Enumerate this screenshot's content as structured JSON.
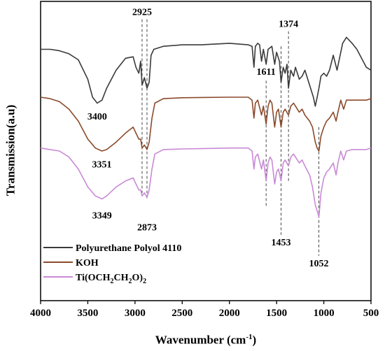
{
  "chart_data": {
    "type": "line",
    "title": "",
    "xlabel": "Wavenumber (cm",
    "xlabel_sup": "-1",
    "xlabel_end": ")",
    "ylabel": "Transmission(a.u)",
    "xlim": [
      4000,
      500
    ],
    "x_ticks": [
      4000,
      3500,
      3000,
      2500,
      2000,
      1500,
      1000,
      500
    ],
    "x_tick_labels": [
      "4000",
      "3500",
      "3000",
      "2500",
      "2000",
      "1500",
      "1000",
      "500"
    ],
    "x_reversed": true,
    "grid": false,
    "legend_position": "bottom-left",
    "series": [
      {
        "name": "Polyurethane Polyol 4110",
        "color": "#3a3a3a",
        "baseline": 0.16,
        "points": [
          [
            4000,
            0.16
          ],
          [
            3900,
            0.16
          ],
          [
            3800,
            0.165
          ],
          [
            3700,
            0.175
          ],
          [
            3600,
            0.195
          ],
          [
            3500,
            0.26
          ],
          [
            3450,
            0.32
          ],
          [
            3400,
            0.34
          ],
          [
            3350,
            0.33
          ],
          [
            3300,
            0.29
          ],
          [
            3200,
            0.23
          ],
          [
            3100,
            0.19
          ],
          [
            3020,
            0.185
          ],
          [
            2990,
            0.22
          ],
          [
            2960,
            0.24
          ],
          [
            2940,
            0.2
          ],
          [
            2925,
            0.28
          ],
          [
            2900,
            0.255
          ],
          [
            2873,
            0.29
          ],
          [
            2850,
            0.27
          ],
          [
            2830,
            0.18
          ],
          [
            2800,
            0.16
          ],
          [
            2700,
            0.15
          ],
          [
            2500,
            0.145
          ],
          [
            2300,
            0.145
          ],
          [
            2000,
            0.14
          ],
          [
            1800,
            0.145
          ],
          [
            1760,
            0.15
          ],
          [
            1740,
            0.22
          ],
          [
            1725,
            0.15
          ],
          [
            1700,
            0.14
          ],
          [
            1680,
            0.145
          ],
          [
            1660,
            0.2
          ],
          [
            1640,
            0.16
          ],
          [
            1611,
            0.21
          ],
          [
            1590,
            0.16
          ],
          [
            1550,
            0.15
          ],
          [
            1520,
            0.21
          ],
          [
            1500,
            0.17
          ],
          [
            1470,
            0.2
          ],
          [
            1453,
            0.27
          ],
          [
            1430,
            0.22
          ],
          [
            1410,
            0.24
          ],
          [
            1390,
            0.21
          ],
          [
            1374,
            0.29
          ],
          [
            1350,
            0.23
          ],
          [
            1320,
            0.25
          ],
          [
            1300,
            0.22
          ],
          [
            1260,
            0.26
          ],
          [
            1230,
            0.25
          ],
          [
            1200,
            0.23
          ],
          [
            1150,
            0.28
          ],
          [
            1110,
            0.32
          ],
          [
            1090,
            0.35
          ],
          [
            1070,
            0.32
          ],
          [
            1052,
            0.29
          ],
          [
            1030,
            0.25
          ],
          [
            1000,
            0.24
          ],
          [
            970,
            0.25
          ],
          [
            940,
            0.23
          ],
          [
            900,
            0.18
          ],
          [
            860,
            0.23
          ],
          [
            840,
            0.2
          ],
          [
            800,
            0.14
          ],
          [
            760,
            0.12
          ],
          [
            700,
            0.14
          ],
          [
            650,
            0.16
          ],
          [
            600,
            0.19
          ],
          [
            550,
            0.22
          ],
          [
            500,
            0.23
          ]
        ]
      },
      {
        "name": "KOH",
        "color": "#8b4a2b",
        "baseline": 0.32,
        "points": [
          [
            4000,
            0.32
          ],
          [
            3900,
            0.325
          ],
          [
            3800,
            0.335
          ],
          [
            3700,
            0.36
          ],
          [
            3600,
            0.4
          ],
          [
            3500,
            0.46
          ],
          [
            3420,
            0.49
          ],
          [
            3351,
            0.5
          ],
          [
            3300,
            0.495
          ],
          [
            3200,
            0.47
          ],
          [
            3100,
            0.44
          ],
          [
            3020,
            0.42
          ],
          [
            2990,
            0.44
          ],
          [
            2960,
            0.46
          ],
          [
            2940,
            0.46
          ],
          [
            2925,
            0.49
          ],
          [
            2900,
            0.48
          ],
          [
            2873,
            0.495
          ],
          [
            2850,
            0.47
          ],
          [
            2820,
            0.39
          ],
          [
            2790,
            0.34
          ],
          [
            2700,
            0.325
          ],
          [
            2500,
            0.322
          ],
          [
            2300,
            0.321
          ],
          [
            2000,
            0.32
          ],
          [
            1800,
            0.32
          ],
          [
            1760,
            0.33
          ],
          [
            1740,
            0.39
          ],
          [
            1725,
            0.34
          ],
          [
            1700,
            0.33
          ],
          [
            1660,
            0.38
          ],
          [
            1640,
            0.35
          ],
          [
            1611,
            0.41
          ],
          [
            1590,
            0.35
          ],
          [
            1570,
            0.33
          ],
          [
            1550,
            0.34
          ],
          [
            1520,
            0.42
          ],
          [
            1500,
            0.37
          ],
          [
            1480,
            0.36
          ],
          [
            1453,
            0.42
          ],
          [
            1430,
            0.37
          ],
          [
            1410,
            0.36
          ],
          [
            1374,
            0.38
          ],
          [
            1350,
            0.35
          ],
          [
            1320,
            0.34
          ],
          [
            1300,
            0.35
          ],
          [
            1260,
            0.37
          ],
          [
            1230,
            0.36
          ],
          [
            1200,
            0.38
          ],
          [
            1150,
            0.4
          ],
          [
            1120,
            0.42
          ],
          [
            1090,
            0.47
          ],
          [
            1070,
            0.49
          ],
          [
            1052,
            0.5
          ],
          [
            1030,
            0.45
          ],
          [
            1000,
            0.42
          ],
          [
            970,
            0.4
          ],
          [
            940,
            0.39
          ],
          [
            900,
            0.37
          ],
          [
            870,
            0.4
          ],
          [
            850,
            0.37
          ],
          [
            820,
            0.33
          ],
          [
            790,
            0.36
          ],
          [
            760,
            0.33
          ],
          [
            700,
            0.33
          ],
          [
            650,
            0.33
          ],
          [
            600,
            0.33
          ],
          [
            550,
            0.33
          ],
          [
            500,
            0.325
          ]
        ]
      },
      {
        "name": "Ti(OCH₂CH₂O)₂",
        "name_parts": [
          "Ti(OCH",
          "2",
          "CH",
          "2",
          "O)",
          "2"
        ],
        "color": "#c98ad6",
        "baseline": 0.49,
        "points": [
          [
            4000,
            0.49
          ],
          [
            3900,
            0.495
          ],
          [
            3800,
            0.5
          ],
          [
            3700,
            0.52
          ],
          [
            3600,
            0.56
          ],
          [
            3500,
            0.62
          ],
          [
            3420,
            0.65
          ],
          [
            3349,
            0.66
          ],
          [
            3300,
            0.65
          ],
          [
            3200,
            0.62
          ],
          [
            3100,
            0.6
          ],
          [
            3020,
            0.59
          ],
          [
            2990,
            0.61
          ],
          [
            2960,
            0.63
          ],
          [
            2940,
            0.63
          ],
          [
            2925,
            0.65
          ],
          [
            2900,
            0.64
          ],
          [
            2873,
            0.655
          ],
          [
            2850,
            0.63
          ],
          [
            2820,
            0.56
          ],
          [
            2790,
            0.51
          ],
          [
            2700,
            0.495
          ],
          [
            2500,
            0.493
          ],
          [
            2300,
            0.492
          ],
          [
            2000,
            0.49
          ],
          [
            1800,
            0.49
          ],
          [
            1760,
            0.5
          ],
          [
            1740,
            0.56
          ],
          [
            1725,
            0.52
          ],
          [
            1700,
            0.51
          ],
          [
            1660,
            0.56
          ],
          [
            1640,
            0.53
          ],
          [
            1611,
            0.6
          ],
          [
            1590,
            0.54
          ],
          [
            1570,
            0.52
          ],
          [
            1550,
            0.53
          ],
          [
            1520,
            0.61
          ],
          [
            1500,
            0.57
          ],
          [
            1480,
            0.56
          ],
          [
            1453,
            0.6
          ],
          [
            1430,
            0.54
          ],
          [
            1410,
            0.53
          ],
          [
            1374,
            0.55
          ],
          [
            1350,
            0.52
          ],
          [
            1320,
            0.51
          ],
          [
            1300,
            0.52
          ],
          [
            1260,
            0.54
          ],
          [
            1230,
            0.53
          ],
          [
            1200,
            0.55
          ],
          [
            1150,
            0.58
          ],
          [
            1120,
            0.62
          ],
          [
            1090,
            0.68
          ],
          [
            1070,
            0.7
          ],
          [
            1052,
            0.72
          ],
          [
            1030,
            0.64
          ],
          [
            1000,
            0.59
          ],
          [
            970,
            0.57
          ],
          [
            940,
            0.56
          ],
          [
            900,
            0.54
          ],
          [
            870,
            0.58
          ],
          [
            850,
            0.54
          ],
          [
            820,
            0.5
          ],
          [
            790,
            0.53
          ],
          [
            760,
            0.5
          ],
          [
            700,
            0.495
          ],
          [
            650,
            0.495
          ],
          [
            600,
            0.495
          ],
          [
            550,
            0.495
          ],
          [
            500,
            0.49
          ]
        ]
      }
    ],
    "annotations": [
      {
        "text": "2925",
        "x": 2925,
        "y": 0.045
      },
      {
        "text": "3400",
        "x": 3400,
        "y": 0.395
      },
      {
        "text": "1374",
        "x": 1374,
        "y": 0.085
      },
      {
        "text": "1611",
        "x": 1611,
        "y": 0.245
      },
      {
        "text": "3351",
        "x": 3351,
        "y": 0.555
      },
      {
        "text": "3349",
        "x": 3349,
        "y": 0.725
      },
      {
        "text": "2873",
        "x": 2873,
        "y": 0.765
      },
      {
        "text": "1453",
        "x": 1453,
        "y": 0.815
      },
      {
        "text": "1052",
        "x": 1052,
        "y": 0.885
      }
    ],
    "reference_lines": [
      {
        "x": 2925,
        "y_from": 0.06,
        "y_to": 0.64
      },
      {
        "x": 2873,
        "y_from": 0.06,
        "y_to": 0.66
      },
      {
        "x": 1611,
        "y_from": 0.265,
        "y_to": 0.69
      },
      {
        "x": 1453,
        "y_from": 0.15,
        "y_to": 0.78
      },
      {
        "x": 1374,
        "y_from": 0.1,
        "y_to": 0.6
      },
      {
        "x": 1052,
        "y_from": 0.42,
        "y_to": 0.85
      }
    ]
  }
}
